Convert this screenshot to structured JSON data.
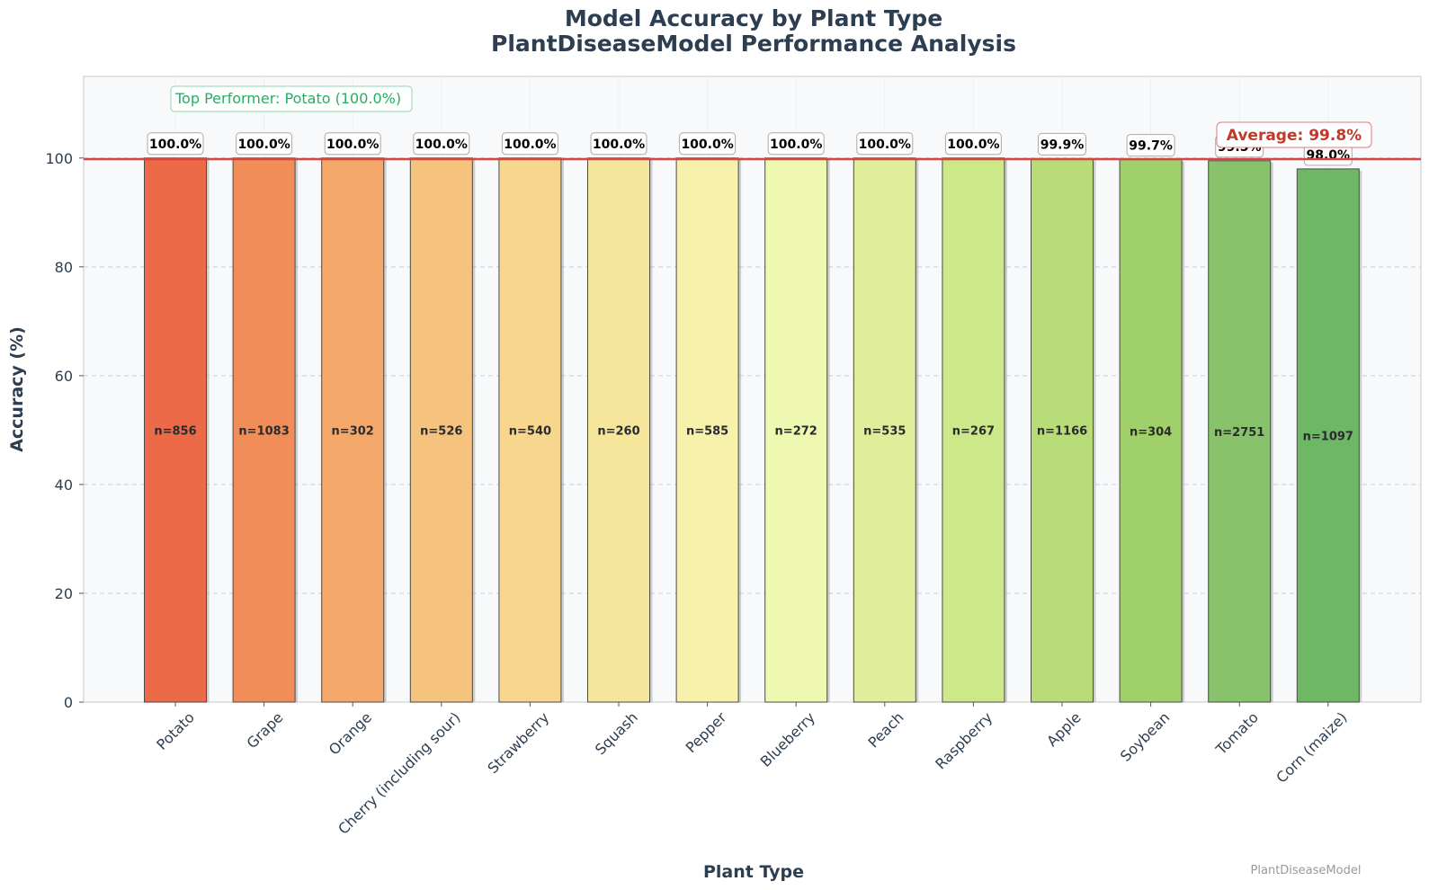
{
  "chart_data": {
    "type": "bar",
    "title": "Model Accuracy by Plant Type",
    "subtitle": "PlantDiseaseModel Performance Analysis",
    "xlabel": "Plant Type",
    "ylabel": "Accuracy (%)",
    "ylim": [
      0,
      115
    ],
    "yticks": [
      0,
      20,
      40,
      60,
      80,
      100
    ],
    "grid": true,
    "categories": [
      "Potato",
      "Grape",
      "Orange",
      "Cherry (including sour)",
      "Strawberry",
      "Squash",
      "Pepper",
      "Blueberry",
      "Peach",
      "Raspberry",
      "Apple",
      "Soybean",
      "Tomato",
      "Corn (maize)"
    ],
    "values": [
      100.0,
      100.0,
      100.0,
      100.0,
      100.0,
      100.0,
      100.0,
      100.0,
      100.0,
      100.0,
      99.9,
      99.7,
      99.5,
      98.0
    ],
    "value_labels": [
      "100.0%",
      "100.0%",
      "100.0%",
      "100.0%",
      "100.0%",
      "100.0%",
      "100.0%",
      "100.0%",
      "100.0%",
      "100.0%",
      "99.9%",
      "99.7%",
      "99.5%",
      "98.0%"
    ],
    "sample_labels": [
      "n=856",
      "n=1083",
      "n=302",
      "n=526",
      "n=540",
      "n=260",
      "n=585",
      "n=272",
      "n=535",
      "n=267",
      "n=1166",
      "n=304",
      "n=2751",
      "n=1097"
    ],
    "colors": [
      "#ec6a48",
      "#f08d58",
      "#f4a96a",
      "#f6c37e",
      "#f7d68e",
      "#f6e69c",
      "#f7f1ac",
      "#eff8b0",
      "#e0ee9c",
      "#cde888",
      "#b7dc78",
      "#9fd06a",
      "#88c36c",
      "#6eb865"
    ],
    "average": {
      "value": 99.8,
      "label": "Average: 99.8%",
      "color": "#d64541"
    },
    "annotation": "Top Performer: Potato (100.0%)",
    "watermark": "PlantDiseaseModel"
  }
}
